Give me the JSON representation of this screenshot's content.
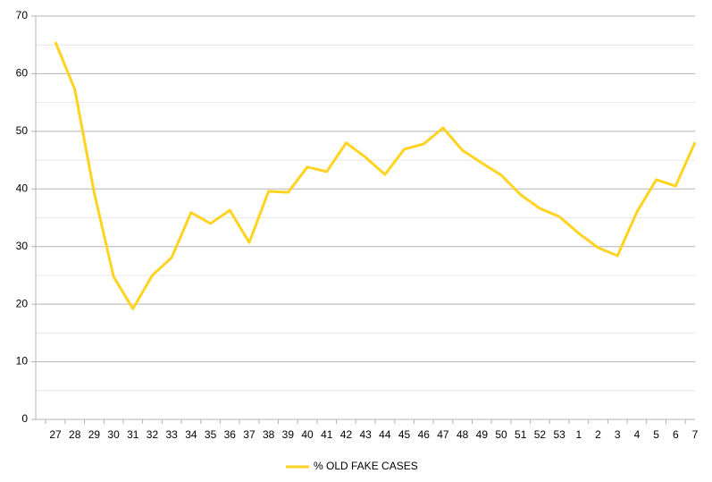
{
  "chart_data": {
    "type": "line",
    "categories": [
      "27",
      "28",
      "29",
      "30",
      "31",
      "32",
      "33",
      "34",
      "35",
      "36",
      "37",
      "38",
      "39",
      "40",
      "41",
      "42",
      "43",
      "44",
      "45",
      "46",
      "47",
      "48",
      "49",
      "50",
      "51",
      "52",
      "53",
      "1",
      "2",
      "3",
      "4",
      "5",
      "6",
      "7"
    ],
    "series": [
      {
        "name": "% OLD FAKE CASES",
        "color": "#ffd320",
        "values": [
          65.5,
          57.3,
          39.4,
          24.8,
          19.2,
          25,
          28.1,
          35.9,
          34,
          36.3,
          30.7,
          39.6,
          39.4,
          43.8,
          43,
          48,
          45.5,
          42.5,
          46.9,
          47.8,
          50.6,
          46.7,
          44.5,
          42.4,
          39,
          36.6,
          35.2,
          32.3,
          29.8,
          28.4,
          36,
          41.6,
          40.5,
          48.1
        ]
      }
    ],
    "ylim": [
      0,
      70
    ],
    "yticks": [
      0,
      10,
      20,
      30,
      40,
      50,
      60,
      70
    ],
    "minor_yticks": [
      5,
      15,
      25,
      35,
      45,
      55,
      65
    ],
    "grid": true,
    "legend": "bottom"
  }
}
